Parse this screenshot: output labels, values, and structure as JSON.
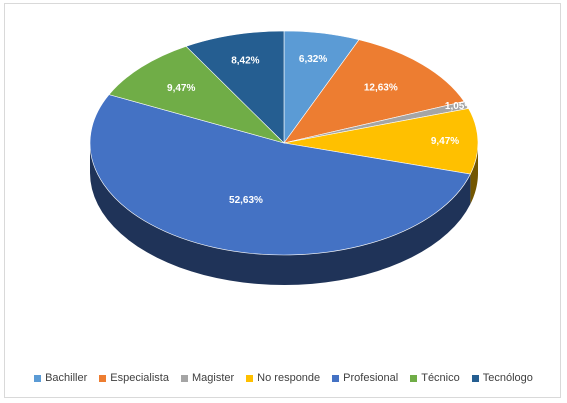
{
  "chart_data": {
    "type": "pie",
    "title": "",
    "categories": [
      "Bachiller",
      "Especialista",
      "Magister",
      "No responde",
      "Profesional",
      "Técnico",
      "Tecnólogo"
    ],
    "values": [
      6.32,
      12.63,
      1.05,
      9.47,
      52.63,
      9.47,
      8.42
    ],
    "labels": [
      "6,32%",
      "12,63%",
      "1,05%",
      "9,47%",
      "52,63%",
      "9,47%",
      "8,42%"
    ],
    "colors": [
      "#5b9bd5",
      "#ed7d31",
      "#a5a5a5",
      "#ffc000",
      "#4472c4",
      "#70ad47",
      "#255e91"
    ],
    "legend_position": "bottom",
    "style": "3d"
  }
}
